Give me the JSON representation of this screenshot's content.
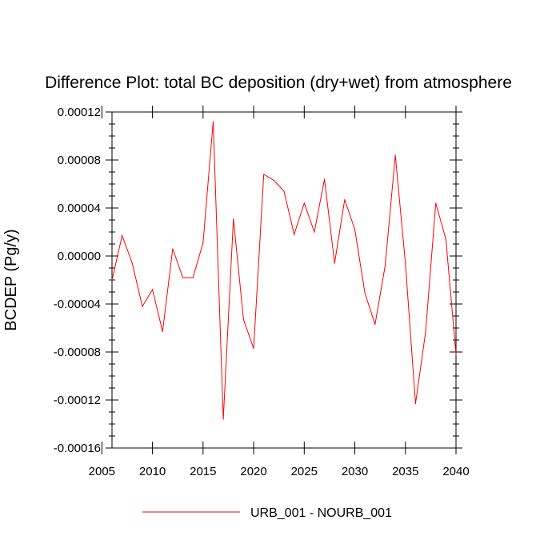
{
  "chart_data": {
    "type": "line",
    "title": "Difference Plot: total BC deposition (dry+wet) from atmosphere",
    "ylabel": "BCDEP  (Pg/y)",
    "xlabel": "",
    "xlim": [
      2006,
      2040
    ],
    "ylim": [
      -0.00016,
      0.00012
    ],
    "x_ticks": [
      2005,
      2010,
      2015,
      2020,
      2025,
      2030,
      2035,
      2040
    ],
    "y_ticks": [
      0.00012,
      8e-05,
      4e-05,
      0.0,
      -4e-05,
      -8e-05,
      -0.00012,
      -0.00016
    ],
    "y_tick_labels": [
      "0.00012",
      "0.00008",
      "0.00004",
      "0.00000",
      "-0.00004",
      "-0.00008",
      "-0.00012",
      "-0.00016"
    ],
    "grid": false,
    "legend_position": "bottom",
    "series": [
      {
        "name": "URB_001 - NOURB_001",
        "color": "#ff0000",
        "x": [
          2006,
          2007,
          2008,
          2009,
          2010,
          2011,
          2012,
          2013,
          2014,
          2015,
          2016,
          2017,
          2018,
          2019,
          2020,
          2021,
          2022,
          2023,
          2024,
          2025,
          2026,
          2027,
          2028,
          2029,
          2030,
          2031,
          2032,
          2033,
          2034,
          2035,
          2036,
          2037,
          2038,
          2039,
          2040
        ],
        "y": [
          -2e-05,
          1.7e-05,
          -6e-06,
          -4.2e-05,
          -2.8e-05,
          -6.3e-05,
          6e-06,
          -1.8e-05,
          -1.8e-05,
          1.1e-05,
          0.000112,
          -0.000136,
          3.1e-05,
          -5.3e-05,
          -7.7e-05,
          6.8e-05,
          6.3e-05,
          5.4e-05,
          1.8e-05,
          4.4e-05,
          2e-05,
          6.4e-05,
          -6e-06,
          4.7e-05,
          2.2e-05,
          -3.1e-05,
          -5.7e-05,
          -8e-06,
          8.4e-05,
          -6e-06,
          -0.000123,
          -6.3e-05,
          4.4e-05,
          1.4e-05,
          -8.2e-05
        ]
      }
    ]
  }
}
